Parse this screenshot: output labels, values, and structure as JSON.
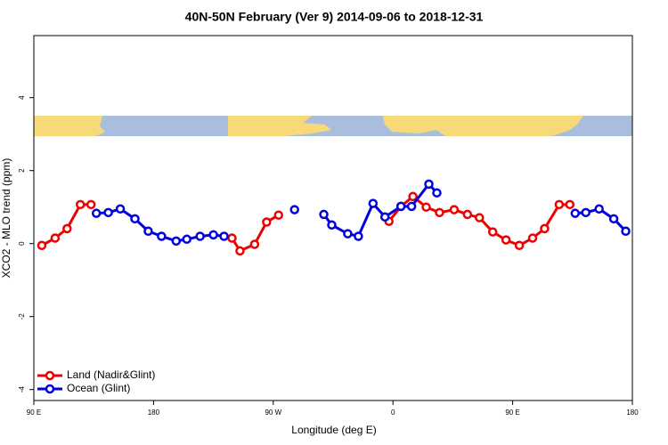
{
  "chart_data": {
    "type": "line",
    "title": "40N-50N February (Ver 9)   2014-09-06 to 2018-12-31",
    "x_label": "Longitude (deg E)",
    "y_label": "XCO2 - MLO trend (ppm)",
    "xlim": [
      90,
      540
    ],
    "ylim": [
      -4.3,
      5.7
    ],
    "xticks": [
      {
        "value": 90,
        "label": "90 E"
      },
      {
        "value": 180,
        "label": "180"
      },
      {
        "value": 270,
        "label": "90 W"
      },
      {
        "value": 360,
        "label": "0"
      },
      {
        "value": 450,
        "label": "90 E"
      },
      {
        "value": 540,
        "label": "180"
      }
    ],
    "yticks": [
      -4,
      -2,
      0,
      2,
      4
    ],
    "legend": "bottom-left",
    "series": [
      {
        "name": "Land (Nadir&Glint)",
        "color": "#ee0000",
        "x": [
          96,
          106,
          115,
          125,
          133,
          null,
          239,
          245,
          256,
          265,
          274,
          null,
          357,
          366,
          375,
          385,
          395,
          406,
          416,
          425,
          435,
          445,
          455,
          465,
          474,
          485,
          493
        ],
        "values": [
          -0.05,
          0.15,
          0.41,
          1.07,
          1.07,
          null,
          0.15,
          -0.2,
          -0.02,
          0.59,
          0.78,
          null,
          0.61,
          1.02,
          1.29,
          1.0,
          0.85,
          0.93,
          0.8,
          0.71,
          0.32,
          0.1,
          -0.05,
          0.15,
          0.41,
          1.07,
          1.07
        ]
      },
      {
        "name": "Ocean (Glint)",
        "color": "#0000dd",
        "x": [
          137,
          146,
          155,
          166,
          176,
          186,
          197,
          205,
          215,
          225,
          233,
          null,
          286,
          null,
          308,
          314,
          326,
          334,
          345,
          354,
          366,
          374,
          387,
          393,
          null,
          497,
          505,
          515,
          526,
          535
        ],
        "values": [
          0.83,
          0.85,
          0.95,
          0.68,
          0.34,
          0.2,
          0.07,
          0.12,
          0.2,
          0.24,
          0.2,
          null,
          0.93,
          null,
          0.8,
          0.51,
          0.27,
          0.2,
          1.1,
          0.73,
          1.02,
          1.02,
          1.63,
          1.39,
          null,
          0.83,
          0.85,
          0.95,
          0.68,
          0.34
        ]
      }
    ]
  }
}
